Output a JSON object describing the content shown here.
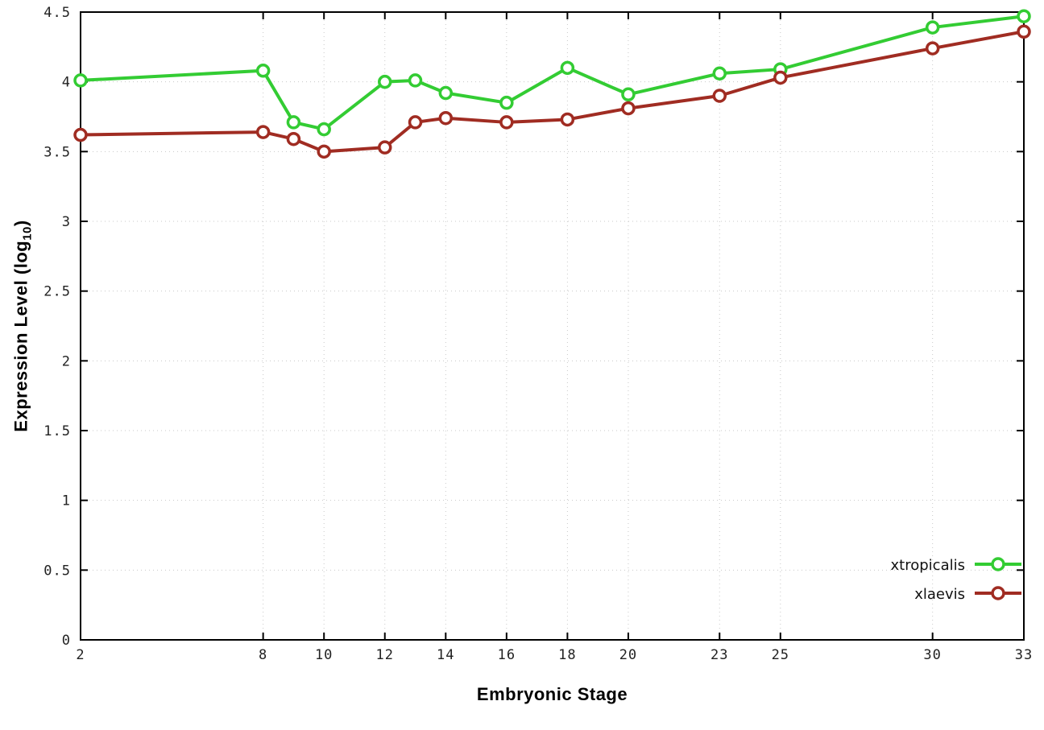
{
  "chart_data": {
    "type": "line",
    "title": "",
    "xlabel": "Embryonic Stage",
    "ylabel": "Expression Level (log10)",
    "ylabel_main": "Expression Level (log",
    "ylabel_sub": "10",
    "ylabel_end": ")",
    "x": [
      2,
      8,
      9,
      10,
      12,
      13,
      14,
      16,
      18,
      20,
      23,
      25,
      30,
      33
    ],
    "series": [
      {
        "name": "xtropicalis",
        "color": "#33cc33",
        "values": [
          4.01,
          4.08,
          3.71,
          3.66,
          4.0,
          4.01,
          3.92,
          3.85,
          4.1,
          3.91,
          4.06,
          4.09,
          4.39,
          4.47
        ]
      },
      {
        "name": "xlaevis",
        "color": "#a02c22",
        "values": [
          3.62,
          3.64,
          3.59,
          3.5,
          3.53,
          3.71,
          3.74,
          3.71,
          3.73,
          3.81,
          3.9,
          4.03,
          4.24,
          4.36
        ]
      }
    ],
    "xticks": [
      2,
      8,
      10,
      12,
      14,
      16,
      18,
      20,
      23,
      25,
      30,
      33
    ],
    "yticks": [
      0,
      0.5,
      1,
      1.5,
      2,
      2.5,
      3,
      3.5,
      4,
      4.5
    ],
    "xlim": [
      2,
      33
    ],
    "ylim": [
      0,
      4.5
    ],
    "grid": true,
    "grid_color": "#c8c8c8",
    "axis_color": "#000000",
    "legend_position": "bottom-right"
  }
}
